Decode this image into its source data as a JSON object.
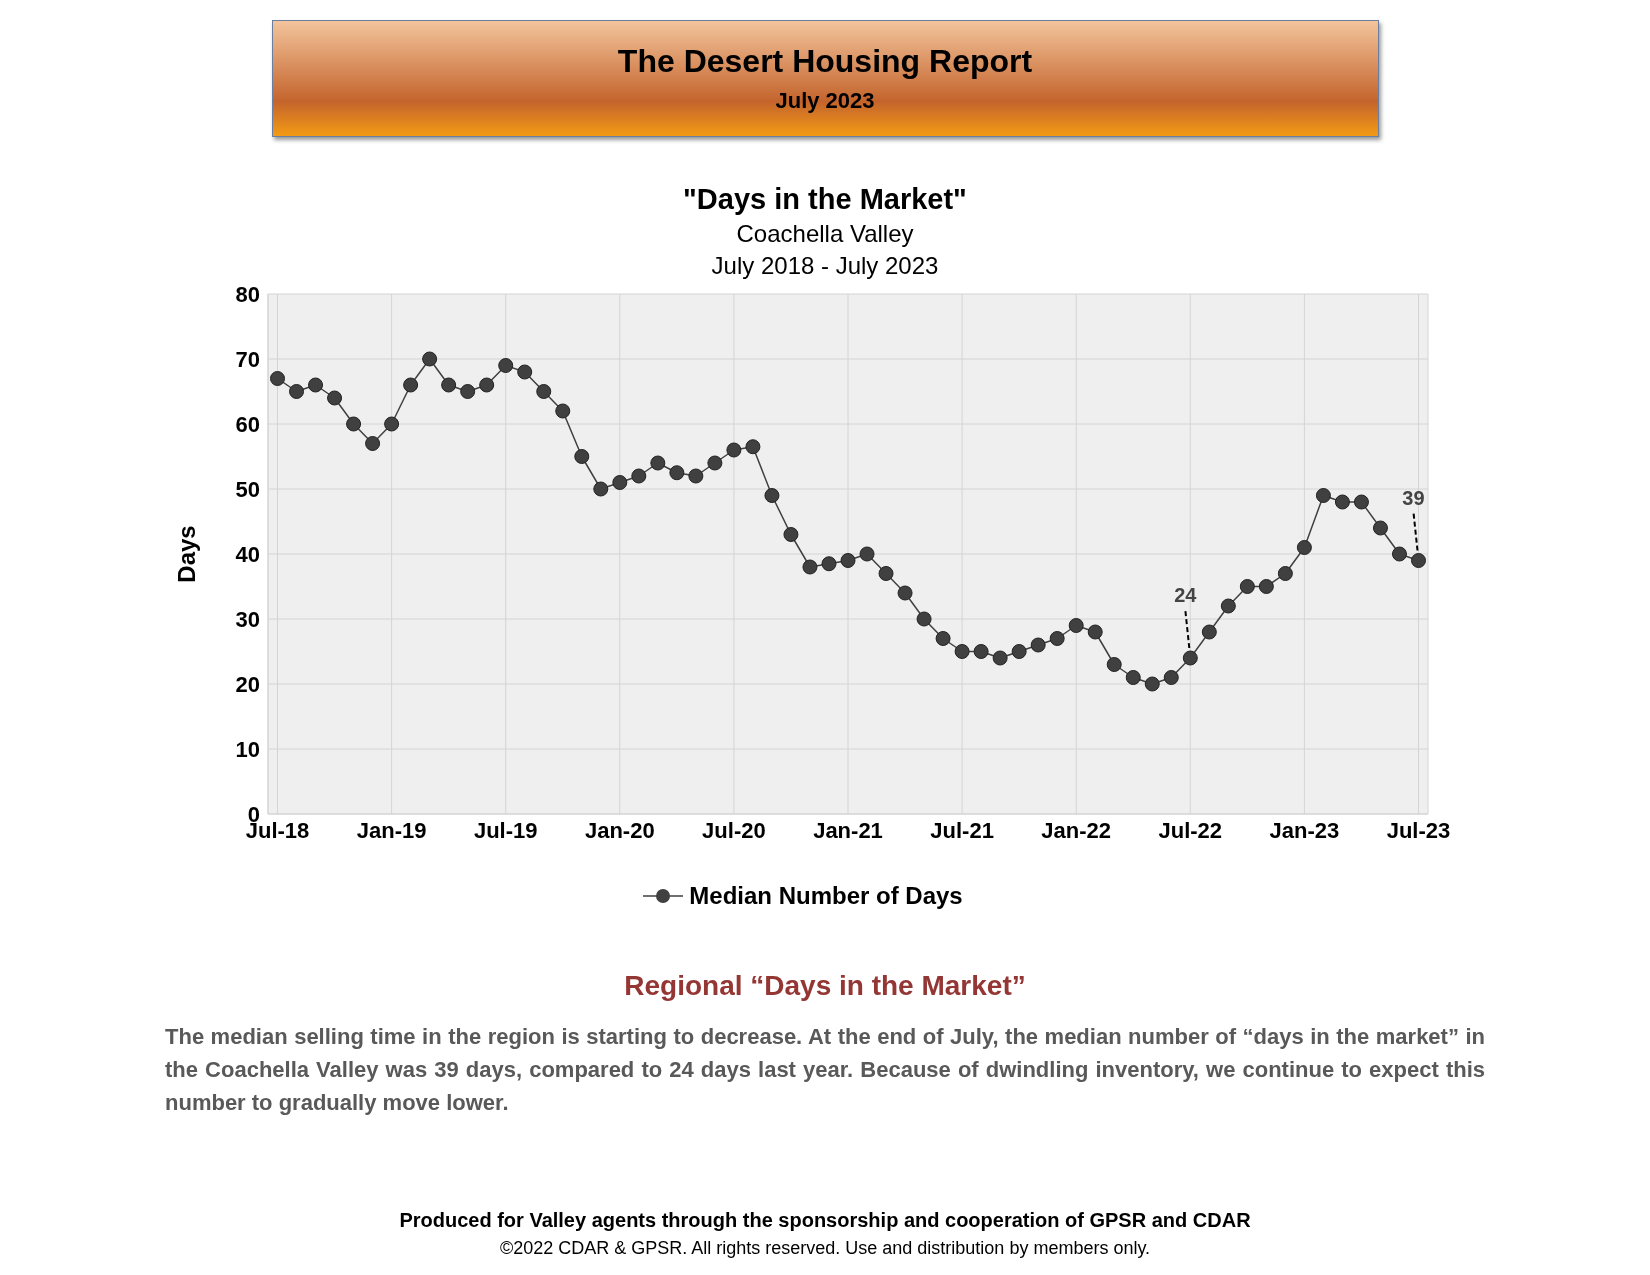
{
  "chart_data": {
    "type": "line",
    "title": "\"Days in the Market\"",
    "subtitle": "Coachella Valley\nJuly 2018 - July 2023",
    "ylabel": "Days",
    "categories": [
      "Jul-18",
      null,
      null,
      null,
      null,
      null,
      "Jan-19",
      null,
      null,
      null,
      null,
      null,
      "Jul-19",
      null,
      null,
      null,
      null,
      null,
      "Jan-20",
      null,
      null,
      null,
      null,
      null,
      "Jul-20",
      null,
      null,
      null,
      null,
      null,
      "Jan-21",
      null,
      null,
      null,
      null,
      null,
      "Jul-21",
      null,
      null,
      null,
      null,
      null,
      "Jan-22",
      null,
      null,
      null,
      null,
      null,
      "Jul-22",
      null,
      null,
      null,
      null,
      null,
      "Jan-23",
      null,
      null,
      null,
      null,
      null,
      "Jul-23"
    ],
    "series": [
      {
        "name": "Median Number of Days",
        "color": "#404040",
        "values": [
          67,
          65,
          66,
          64,
          60,
          57,
          60,
          66,
          70,
          66,
          65,
          66,
          69,
          68,
          65,
          62,
          55,
          50,
          51,
          52,
          54,
          52.5,
          52,
          54,
          56,
          56.5,
          49,
          43,
          38,
          38.5,
          39,
          40,
          37,
          34,
          30,
          27,
          25,
          25,
          24,
          25,
          26,
          27,
          29,
          28,
          23,
          21,
          20,
          21,
          24,
          28,
          32,
          35,
          35,
          37,
          41,
          49,
          48,
          48,
          44,
          40,
          39
        ]
      }
    ],
    "ylim": [
      0,
      80
    ],
    "yticks": [
      0,
      10,
      20,
      30,
      40,
      50,
      60,
      70,
      80
    ],
    "grid": true,
    "legend": "bottom",
    "marker": "circle",
    "line_style": "solid",
    "annotations": [
      {
        "text": "24",
        "x": "Jul-22",
        "y": 24
      },
      {
        "text": "39",
        "x": "Jul-23",
        "y": 39
      },
      "The Desert Housing Report",
      "July 2023",
      "Regional “Days in the Market”",
      "The median selling time in the region is starting to decrease. At the end of July, the median number of “days in the market” in the Coachella Valley was 39 days, compared to 24 days last year. Because of dwindling inventory, we continue to expect this number to gradually move lower.",
      "Produced for Valley agents through the sponsorship and cooperation of GPSR and CDAR",
      "©2022 CDAR & GPSR.  All rights reserved.  Use and distribution by members only."
    ]
  }
}
